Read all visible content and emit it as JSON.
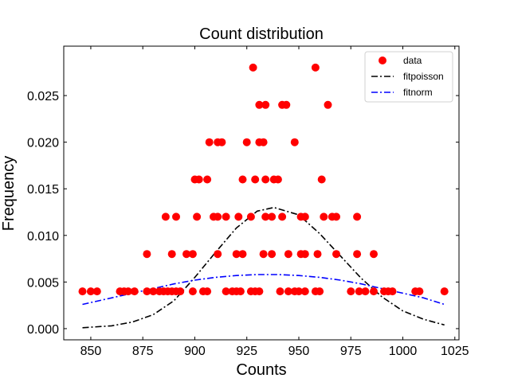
{
  "chart_data": {
    "type": "scatter",
    "title": "Count distribution",
    "xlabel": "Counts",
    "ylabel": "Frequency",
    "xlim": [
      837,
      1027
    ],
    "ylim": [
      -0.0012,
      0.0303
    ],
    "xticks": [
      850,
      875,
      900,
      925,
      950,
      975,
      1000,
      1025
    ],
    "yticks": [
      0.0,
      0.005,
      0.01,
      0.015,
      0.02,
      0.025
    ],
    "ytick_labels": [
      "0.000",
      "0.005",
      "0.010",
      "0.015",
      "0.020",
      "0.025"
    ],
    "grid": false,
    "legend_position": "top-right",
    "colors": {
      "data": "#ff0000",
      "fitpoisson": "#000000",
      "fitnorm": "#0000ff"
    },
    "series": [
      {
        "name": "data",
        "kind": "scatter",
        "points": [
          [
            846,
            0.004
          ],
          [
            850,
            0.004
          ],
          [
            853,
            0.004
          ],
          [
            864,
            0.004
          ],
          [
            866,
            0.004
          ],
          [
            868,
            0.004
          ],
          [
            871,
            0.004
          ],
          [
            877,
            0.004
          ],
          [
            880,
            0.004
          ],
          [
            883,
            0.004
          ],
          [
            885,
            0.004
          ],
          [
            887,
            0.004
          ],
          [
            889,
            0.004
          ],
          [
            891,
            0.004
          ],
          [
            893,
            0.004
          ],
          [
            899,
            0.004
          ],
          [
            904,
            0.004
          ],
          [
            906,
            0.004
          ],
          [
            915,
            0.004
          ],
          [
            918,
            0.004
          ],
          [
            920,
            0.004
          ],
          [
            922,
            0.004
          ],
          [
            927,
            0.004
          ],
          [
            929,
            0.004
          ],
          [
            931,
            0.004
          ],
          [
            941,
            0.004
          ],
          [
            945,
            0.004
          ],
          [
            948,
            0.004
          ],
          [
            950,
            0.004
          ],
          [
            953,
            0.004
          ],
          [
            958,
            0.004
          ],
          [
            960,
            0.004
          ],
          [
            975,
            0.004
          ],
          [
            979,
            0.004
          ],
          [
            982,
            0.004
          ],
          [
            986,
            0.004
          ],
          [
            991,
            0.004
          ],
          [
            993,
            0.004
          ],
          [
            995,
            0.004
          ],
          [
            1006,
            0.004
          ],
          [
            1008,
            0.004
          ],
          [
            1020,
            0.004
          ],
          [
            877,
            0.008
          ],
          [
            889,
            0.008
          ],
          [
            896,
            0.008
          ],
          [
            899,
            0.008
          ],
          [
            911,
            0.008
          ],
          [
            920,
            0.008
          ],
          [
            923,
            0.008
          ],
          [
            933,
            0.008
          ],
          [
            937,
            0.008
          ],
          [
            945,
            0.008
          ],
          [
            951,
            0.008
          ],
          [
            953,
            0.008
          ],
          [
            959,
            0.008
          ],
          [
            968,
            0.008
          ],
          [
            978,
            0.008
          ],
          [
            986,
            0.008
          ],
          [
            886,
            0.012
          ],
          [
            891,
            0.012
          ],
          [
            901,
            0.012
          ],
          [
            909,
            0.012
          ],
          [
            911,
            0.012
          ],
          [
            915,
            0.012
          ],
          [
            921,
            0.012
          ],
          [
            927,
            0.012
          ],
          [
            934,
            0.012
          ],
          [
            937,
            0.012
          ],
          [
            942,
            0.012
          ],
          [
            951,
            0.012
          ],
          [
            953,
            0.012
          ],
          [
            962,
            0.012
          ],
          [
            966,
            0.012
          ],
          [
            968,
            0.012
          ],
          [
            978,
            0.012
          ],
          [
            900,
            0.016
          ],
          [
            902,
            0.016
          ],
          [
            906,
            0.016
          ],
          [
            923,
            0.016
          ],
          [
            929,
            0.016
          ],
          [
            934,
            0.016
          ],
          [
            938,
            0.016
          ],
          [
            940,
            0.016
          ],
          [
            961,
            0.016
          ],
          [
            907,
            0.02
          ],
          [
            911,
            0.02
          ],
          [
            913,
            0.02
          ],
          [
            925,
            0.02
          ],
          [
            931,
            0.02
          ],
          [
            933,
            0.02
          ],
          [
            948,
            0.02
          ],
          [
            931,
            0.024
          ],
          [
            934,
            0.024
          ],
          [
            942,
            0.024
          ],
          [
            944,
            0.024
          ],
          [
            964,
            0.024
          ],
          [
            928,
            0.028
          ],
          [
            958,
            0.028
          ]
        ]
      },
      {
        "name": "fitpoisson",
        "kind": "line",
        "style": "dashdot",
        "x": [
          846,
          860,
          870,
          880,
          890,
          900,
          910,
          920,
          930,
          938,
          950,
          960,
          970,
          980,
          990,
          1000,
          1010,
          1020
        ],
        "y": [
          0.0001,
          0.0003,
          0.0007,
          0.0015,
          0.003,
          0.0055,
          0.0082,
          0.0108,
          0.0126,
          0.013,
          0.0122,
          0.0102,
          0.0078,
          0.0054,
          0.0034,
          0.0019,
          0.001,
          0.0004
        ]
      },
      {
        "name": "fitnorm",
        "kind": "line",
        "style": "dashdot",
        "x": [
          846,
          860,
          870,
          880,
          890,
          900,
          910,
          920,
          930,
          935,
          940,
          950,
          960,
          970,
          980,
          990,
          1000,
          1010,
          1020
        ],
        "y": [
          0.0026,
          0.0033,
          0.0038,
          0.0043,
          0.0048,
          0.0052,
          0.0055,
          0.0057,
          0.0058,
          0.0058,
          0.0058,
          0.0057,
          0.0055,
          0.0052,
          0.0048,
          0.0043,
          0.0038,
          0.0033,
          0.0026
        ]
      }
    ]
  }
}
